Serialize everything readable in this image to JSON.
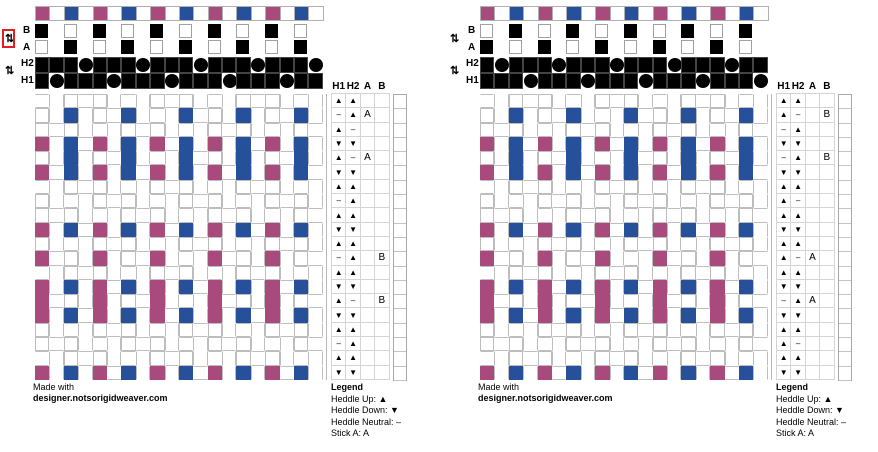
{
  "colors": {
    "magenta": "#a84a7c",
    "blue": "#27509a",
    "white": "#ffffff",
    "black": "#000000"
  },
  "labels": {
    "B": "B",
    "A": "A",
    "H2": "H2",
    "H1": "H1",
    "swap_icon": "⇅"
  },
  "tread_headers": [
    "H1",
    "H2",
    "A",
    "B"
  ],
  "warp_colors": [
    "magenta",
    "white",
    "blue",
    "white",
    "magenta",
    "white",
    "blue",
    "white",
    "magenta",
    "white",
    "blue",
    "white",
    "magenta",
    "white",
    "blue",
    "white",
    "magenta",
    "white",
    "blue",
    "white"
  ],
  "weave_color_rows": [
    [],
    [
      "blue"
    ],
    [],
    [
      "magenta",
      "blue"
    ],
    [
      "blue"
    ],
    [
      "magenta",
      "blue"
    ],
    [],
    [],
    [],
    [
      "magenta",
      "blue"
    ],
    [],
    [
      "magenta"
    ],
    [],
    [
      "magenta",
      "blue"
    ],
    [
      "magenta"
    ],
    [
      "magenta",
      "blue"
    ],
    [],
    [],
    [],
    [
      "magenta",
      "blue"
    ]
  ],
  "panels": [
    {
      "id": "left",
      "swap_highlighted": true,
      "stick_b_filled": [
        0,
        4,
        8,
        12,
        16
      ],
      "stick_a_filled": [
        2,
        6,
        10,
        14,
        18
      ],
      "h2_slots": [
        3,
        7,
        11,
        15,
        19
      ],
      "h1_slots": [
        1,
        5,
        9,
        13,
        17
      ],
      "treadling": [
        [
          "▲",
          "▲",
          "",
          ""
        ],
        [
          "–",
          "▲",
          "A",
          ""
        ],
        [
          "▲",
          "–",
          "",
          ""
        ],
        [
          "▼",
          "▼",
          "",
          ""
        ],
        [
          "▲",
          "–",
          "A",
          ""
        ],
        [
          "▼",
          "▼",
          "",
          ""
        ],
        [
          "▲",
          "▲",
          "",
          ""
        ],
        [
          "–",
          "▲",
          "",
          ""
        ],
        [
          "▲",
          "▲",
          "",
          ""
        ],
        [
          "▼",
          "▼",
          "",
          ""
        ],
        [
          "▲",
          "▲",
          "",
          ""
        ],
        [
          "–",
          "▲",
          "",
          "B"
        ],
        [
          "▲",
          "▲",
          "",
          ""
        ],
        [
          "▼",
          "▼",
          "",
          ""
        ],
        [
          "▲",
          "–",
          "",
          "B"
        ],
        [
          "▼",
          "▼",
          "",
          ""
        ],
        [
          "▲",
          "▲",
          "",
          ""
        ],
        [
          "–",
          "▲",
          "",
          ""
        ],
        [
          "▲",
          "▲",
          "",
          ""
        ],
        [
          "▼",
          "▼",
          "",
          ""
        ]
      ]
    },
    {
      "id": "right",
      "swap_highlighted": false,
      "stick_b_filled": [
        2,
        6,
        10,
        14,
        18
      ],
      "stick_a_filled": [
        0,
        4,
        8,
        12,
        16
      ],
      "h2_slots": [
        1,
        5,
        9,
        13,
        17
      ],
      "h1_slots": [
        3,
        7,
        11,
        15,
        19
      ],
      "treadling": [
        [
          "▲",
          "▲",
          "",
          ""
        ],
        [
          "▲",
          "–",
          "",
          "B"
        ],
        [
          "–",
          "▲",
          "",
          ""
        ],
        [
          "▼",
          "▼",
          "",
          ""
        ],
        [
          "–",
          "▲",
          "",
          "B"
        ],
        [
          "▼",
          "▼",
          "",
          ""
        ],
        [
          "▲",
          "▲",
          "",
          ""
        ],
        [
          "▲",
          "–",
          "",
          ""
        ],
        [
          "▲",
          "▲",
          "",
          ""
        ],
        [
          "▼",
          "▼",
          "",
          ""
        ],
        [
          "▲",
          "▲",
          "",
          ""
        ],
        [
          "▲",
          "–",
          "A",
          ""
        ],
        [
          "▲",
          "▲",
          "",
          ""
        ],
        [
          "▼",
          "▼",
          "",
          ""
        ],
        [
          "–",
          "▲",
          "A",
          ""
        ],
        [
          "▼",
          "▼",
          "",
          ""
        ],
        [
          "▲",
          "▲",
          "",
          ""
        ],
        [
          "▲",
          "–",
          "",
          ""
        ],
        [
          "▲",
          "▲",
          "",
          ""
        ],
        [
          "▼",
          "▼",
          "",
          ""
        ]
      ]
    }
  ],
  "credit": {
    "line1": "Made with",
    "line2": "designer.notsorigidweaver.com"
  },
  "legend": {
    "title": "Legend",
    "items": [
      "Heddle Up: ▲",
      "Heddle Down: ▼",
      "Heddle Neutral: –",
      "Stick A: A"
    ]
  }
}
